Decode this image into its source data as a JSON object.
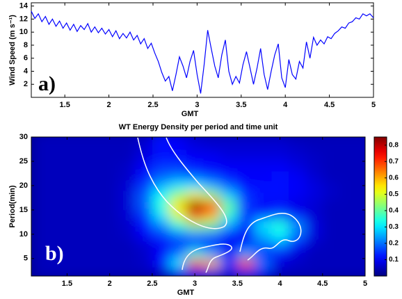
{
  "chart_data": [
    {
      "type": "line",
      "ylabel": "Wind Speed (m s⁻¹)",
      "xlabel": "GMT",
      "annotation": "a)",
      "xlim": [
        1.12,
        5
      ],
      "ylim": [
        0,
        14.5
      ],
      "xticks": [
        1.5,
        2,
        2.5,
        3,
        3.5,
        4,
        4.5,
        5
      ],
      "yticks": [
        2,
        4,
        6,
        8,
        10,
        12,
        14
      ],
      "x": [
        1.12,
        1.16,
        1.2,
        1.24,
        1.28,
        1.32,
        1.36,
        1.4,
        1.44,
        1.48,
        1.52,
        1.56,
        1.6,
        1.64,
        1.68,
        1.72,
        1.76,
        1.8,
        1.84,
        1.88,
        1.92,
        1.96,
        2,
        2.04,
        2.08,
        2.12,
        2.16,
        2.2,
        2.24,
        2.28,
        2.32,
        2.36,
        2.4,
        2.44,
        2.48,
        2.52,
        2.56,
        2.6,
        2.64,
        2.68,
        2.72,
        2.76,
        2.8,
        2.84,
        2.88,
        2.92,
        2.96,
        3,
        3.04,
        3.08,
        3.12,
        3.16,
        3.2,
        3.24,
        3.28,
        3.32,
        3.36,
        3.4,
        3.44,
        3.48,
        3.52,
        3.56,
        3.6,
        3.64,
        3.68,
        3.72,
        3.76,
        3.8,
        3.84,
        3.88,
        3.92,
        3.96,
        4,
        4.04,
        4.08,
        4.12,
        4.16,
        4.2,
        4.24,
        4.28,
        4.32,
        4.36,
        4.4,
        4.44,
        4.48,
        4.52,
        4.56,
        4.6,
        4.64,
        4.68,
        4.72,
        4.76,
        4.8,
        4.84,
        4.88,
        4.92,
        4.96,
        5
      ],
      "series": [
        {
          "color": "#0000ff",
          "values": [
            13.2,
            12.1,
            12.8,
            11.6,
            12.4,
            11.2,
            12,
            10.9,
            11.7,
            10.6,
            11.4,
            10.3,
            11.2,
            10.1,
            11,
            10.4,
            11.3,
            10,
            10.8,
            9.9,
            10.6,
            9.7,
            10.4,
            9.3,
            10.2,
            9,
            9.8,
            9.1,
            10,
            8.8,
            9.5,
            8.2,
            9,
            7.5,
            8.3,
            6.8,
            5.5,
            3.8,
            2.5,
            3.2,
            1,
            3.5,
            6.2,
            4.8,
            3,
            5.5,
            7.2,
            3.5,
            0.6,
            5,
            10.3,
            7.5,
            4.8,
            3,
            6.5,
            8.8,
            4,
            2,
            3.2,
            2.2,
            5,
            7,
            4.5,
            2,
            4.5,
            7.5,
            3.5,
            1.2,
            4,
            6.5,
            8.2,
            3,
            1.5,
            5.8,
            3.5,
            2.8,
            5.5,
            4.5,
            8.5,
            6,
            9.2,
            8,
            8.8,
            8.2,
            9.3,
            9,
            9.8,
            10.2,
            10.8,
            10.6,
            11.4,
            11.6,
            12.2,
            12,
            12.8,
            12.5,
            12.8,
            12.2
          ]
        }
      ]
    },
    {
      "type": "heatmap",
      "title": "WT Energy Density per period and time unit",
      "ylabel": "Period(min)",
      "xlabel": "GMT",
      "annotation": "b)",
      "colormap": "jet",
      "xlim": [
        1.08,
        5
      ],
      "ylim": [
        1.4,
        30
      ],
      "clim": [
        0,
        0.85
      ],
      "xticks": [
        1.5,
        2,
        2.5,
        3,
        3.5,
        4,
        4.5,
        5
      ],
      "yticks": [
        5,
        10,
        15,
        20,
        25,
        30
      ],
      "cticks": [
        0.1,
        0.2,
        0.3,
        0.4,
        0.5,
        0.6,
        0.7,
        0.8
      ],
      "x": [
        1.2,
        1.4,
        1.6,
        1.8,
        2,
        2.2,
        2.4,
        2.6,
        2.8,
        3,
        3.2,
        3.4,
        3.6,
        3.8,
        4,
        4.2,
        4.4,
        4.6,
        4.8,
        5
      ],
      "y": [
        2,
        4,
        6,
        8,
        10,
        12,
        14,
        16,
        18,
        20,
        22,
        24,
        26,
        28,
        30
      ],
      "z": [
        [
          0.05,
          0.05,
          0.05,
          0.05,
          0.05,
          0.05,
          0.05,
          0.05,
          0.1,
          0.15,
          0.1,
          0.08,
          0.15,
          0.1,
          0.05,
          0.05,
          0.05,
          0.05,
          0.05,
          0.05
        ],
        [
          0.05,
          0.05,
          0.05,
          0.05,
          0.05,
          0.05,
          0.06,
          0.12,
          0.3,
          0.75,
          0.6,
          0.15,
          0.7,
          0.2,
          0.08,
          0.06,
          0.05,
          0.05,
          0.05,
          0.05
        ],
        [
          0.05,
          0.05,
          0.05,
          0.05,
          0.05,
          0.05,
          0.06,
          0.1,
          0.2,
          0.35,
          0.25,
          0.1,
          0.25,
          0.15,
          0.1,
          0.07,
          0.05,
          0.05,
          0.05,
          0.05
        ],
        [
          0.05,
          0.05,
          0.05,
          0.05,
          0.05,
          0.05,
          0.07,
          0.1,
          0.15,
          0.15,
          0.12,
          0.1,
          0.12,
          0.2,
          0.22,
          0.12,
          0.06,
          0.05,
          0.05,
          0.05
        ],
        [
          0.05,
          0.05,
          0.05,
          0.05,
          0.05,
          0.06,
          0.1,
          0.15,
          0.2,
          0.22,
          0.2,
          0.12,
          0.1,
          0.25,
          0.32,
          0.2,
          0.08,
          0.05,
          0.05,
          0.05
        ],
        [
          0.05,
          0.05,
          0.05,
          0.05,
          0.05,
          0.06,
          0.12,
          0.22,
          0.35,
          0.45,
          0.42,
          0.25,
          0.12,
          0.3,
          0.35,
          0.22,
          0.08,
          0.05,
          0.05,
          0.05
        ],
        [
          0.05,
          0.05,
          0.05,
          0.05,
          0.05,
          0.07,
          0.15,
          0.3,
          0.5,
          0.7,
          0.6,
          0.35,
          0.15,
          0.15,
          0.18,
          0.12,
          0.07,
          0.05,
          0.05,
          0.05
        ],
        [
          0.05,
          0.05,
          0.05,
          0.05,
          0.05,
          0.07,
          0.18,
          0.35,
          0.55,
          0.85,
          0.7,
          0.4,
          0.15,
          0.1,
          0.1,
          0.08,
          0.07,
          0.05,
          0.05,
          0.05
        ],
        [
          0.05,
          0.05,
          0.05,
          0.05,
          0.05,
          0.07,
          0.18,
          0.32,
          0.45,
          0.55,
          0.45,
          0.28,
          0.15,
          0.12,
          0.12,
          0.1,
          0.08,
          0.06,
          0.05,
          0.05
        ],
        [
          0.05,
          0.05,
          0.05,
          0.05,
          0.05,
          0.07,
          0.15,
          0.25,
          0.3,
          0.3,
          0.25,
          0.18,
          0.12,
          0.12,
          0.12,
          0.1,
          0.08,
          0.06,
          0.05,
          0.05
        ],
        [
          0.05,
          0.05,
          0.05,
          0.05,
          0.05,
          0.06,
          0.12,
          0.18,
          0.2,
          0.18,
          0.15,
          0.12,
          0.1,
          0.1,
          0.12,
          0.1,
          0.07,
          0.05,
          0.05,
          0.05
        ],
        [
          0.05,
          0.05,
          0.05,
          0.05,
          0.05,
          0.06,
          0.1,
          0.15,
          0.15,
          0.12,
          0.1,
          0.1,
          0.1,
          0.1,
          0.1,
          0.08,
          0.06,
          0.05,
          0.05,
          0.05
        ],
        [
          0.05,
          0.05,
          0.05,
          0.05,
          0.05,
          0.05,
          0.08,
          0.12,
          0.12,
          0.1,
          0.1,
          0.08,
          0.08,
          0.08,
          0.08,
          0.07,
          0.06,
          0.05,
          0.05,
          0.05
        ],
        [
          0.05,
          0.05,
          0.05,
          0.05,
          0.05,
          0.05,
          0.07,
          0.12,
          0.1,
          0.08,
          0.07,
          0.07,
          0.07,
          0.07,
          0.07,
          0.06,
          0.05,
          0.05,
          0.05,
          0.05
        ],
        [
          0.05,
          0.05,
          0.05,
          0.05,
          0.05,
          0.05,
          0.06,
          0.12,
          0.1,
          0.07,
          0.06,
          0.06,
          0.06,
          0.06,
          0.06,
          0.05,
          0.05,
          0.05,
          0.05,
          0.05
        ]
      ]
    }
  ]
}
